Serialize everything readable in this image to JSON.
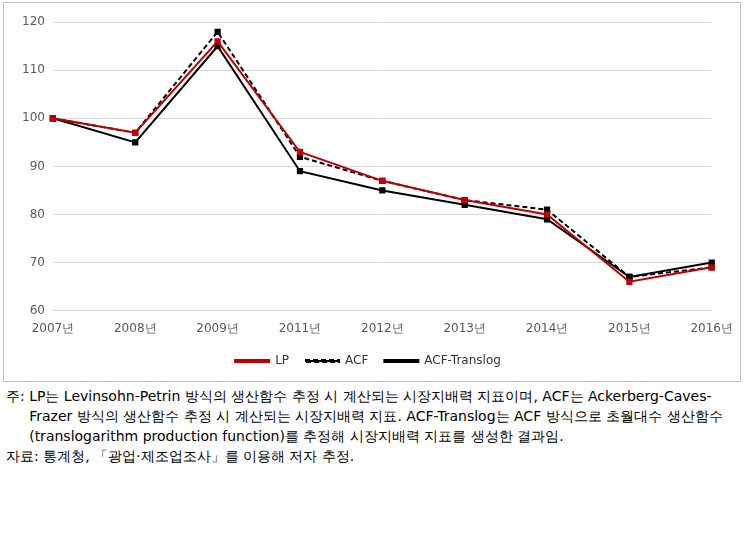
{
  "chart_data": {
    "type": "line",
    "categories": [
      "2007년",
      "2008년",
      "2009년",
      "2011년",
      "2012년",
      "2013년",
      "2014년",
      "2015년",
      "2016년"
    ],
    "series": [
      {
        "name": "LP",
        "color": "#c00000",
        "marker": "square",
        "line_style": "solid",
        "values": [
          100,
          97,
          116,
          93,
          87,
          83,
          80,
          66,
          69
        ]
      },
      {
        "name": "ACF",
        "color": "#000000",
        "marker": "square",
        "line_style": "dashed",
        "values": [
          100,
          97,
          118,
          92,
          87,
          83,
          81,
          67,
          69
        ]
      },
      {
        "name": "ACF-Translog",
        "color": "#000000",
        "marker": "square",
        "line_style": "solid",
        "values": [
          100,
          95,
          115,
          89,
          85,
          82,
          79,
          67,
          70
        ]
      }
    ],
    "ylim": [
      60,
      120
    ],
    "yticks": [
      60,
      70,
      80,
      90,
      100,
      110,
      120
    ],
    "grid": true,
    "legend": "bottom",
    "annotations": [
      {
        "lead": "주: ",
        "text": "LP는 Levinsohn-Petrin 방식의 생산함수 추정 시 계산되는 시장지배력 지표이며, ACF는 Ackerberg-Caves-Frazer 방식의 생산함수 추정 시 계산되는 시장지배력 지표. ACF-Translog는 ACF 방식으로 초월대수 생산함수(translogarithm production function)를 추정해 시장지배력 지표를 생성한 결과임."
      },
      {
        "lead": "자료: ",
        "text": "통계청, 「광업·제조업조사」를 이용해 저자 추정."
      }
    ]
  }
}
